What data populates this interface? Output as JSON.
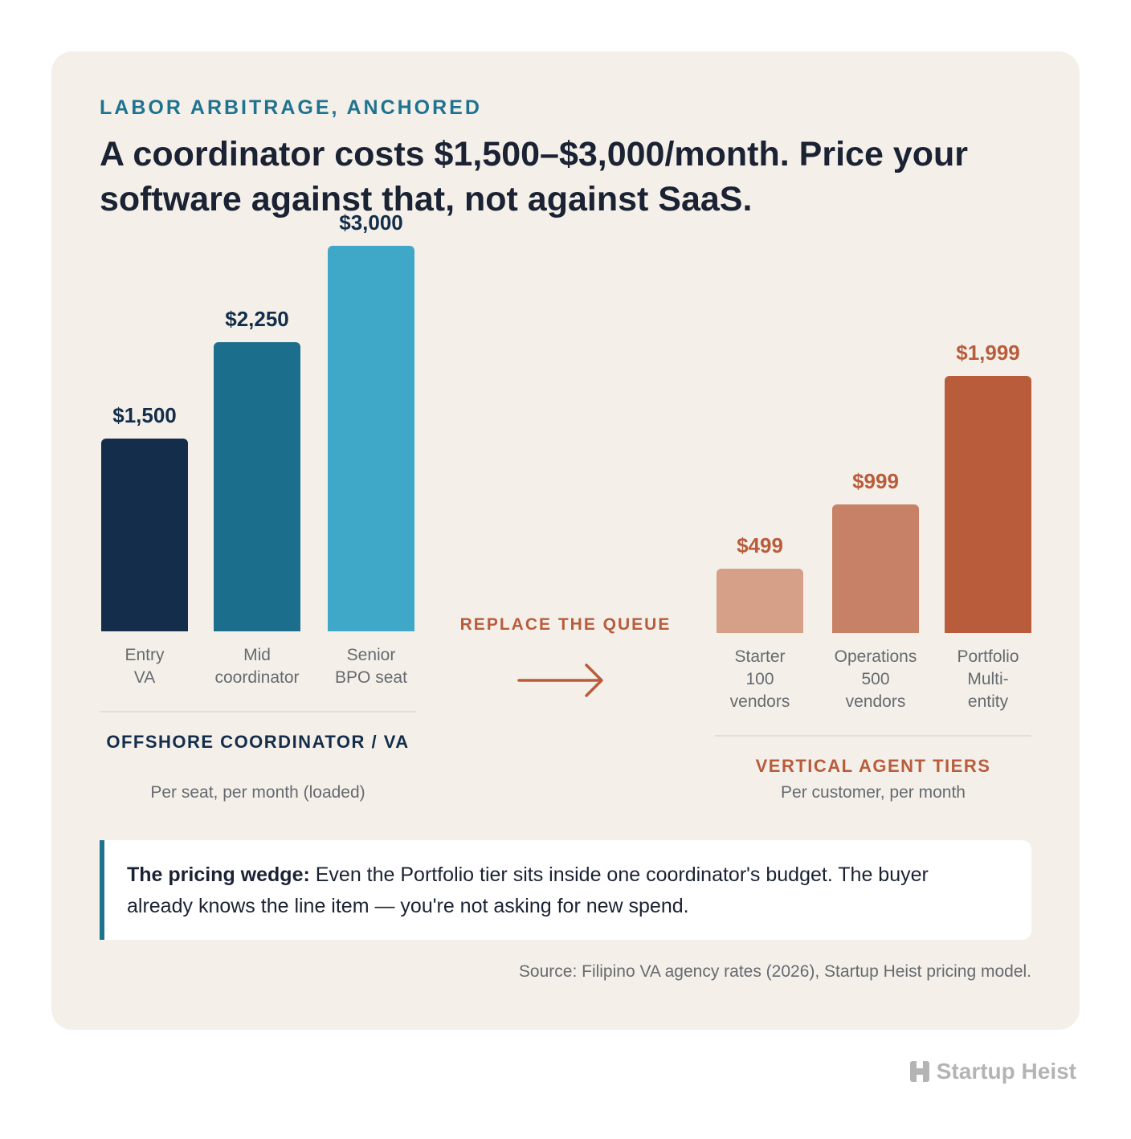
{
  "eyebrow": "LABOR ARBITRAGE, ANCHORED",
  "headline": "A coordinator costs $1,500–$3,000/month. Price your software against that, not against SaaS.",
  "chart_data": {
    "type": "bar",
    "groups": [
      {
        "title": "OFFSHORE COORDINATOR / VA",
        "subtitle": "Per seat, per month (loaded)",
        "categories": [
          [
            "Entry",
            "VA"
          ],
          [
            "Mid",
            "coordinator"
          ],
          [
            "Senior",
            "BPO seat"
          ]
        ],
        "values": [
          1500,
          2250,
          3000
        ],
        "value_labels": [
          "$1,500",
          "$2,250",
          "$3,000"
        ],
        "colors": [
          "#132d4a",
          "#1c6f8c",
          "#3fa8c9"
        ]
      },
      {
        "title": "VERTICAL AGENT TIERS",
        "subtitle": "Per customer, per month",
        "categories": [
          [
            "Starter",
            "100",
            "vendors"
          ],
          [
            "Operations",
            "500",
            "vendors"
          ],
          [
            "Portfolio",
            "Multi-",
            "entity"
          ]
        ],
        "values": [
          499,
          999,
          1999
        ],
        "value_labels": [
          "$499",
          "$999",
          "$1,999"
        ],
        "colors": [
          "#d59f88",
          "#c78166",
          "#b85c3c"
        ]
      }
    ],
    "transition_label": "REPLACE THE QUEUE"
  },
  "callout": {
    "lead": "The pricing wedge:",
    "text": " Even the Portfolio tier sits inside one coordinator's budget. The buyer already knows the line item — you're not asking for new spend.",
    "accent_color": "#1f7390"
  },
  "source": "Source: Filipino VA agency rates (2026), Startup Heist pricing model.",
  "brand": {
    "name": "Startup Heist",
    "icon": "building-h-icon"
  }
}
